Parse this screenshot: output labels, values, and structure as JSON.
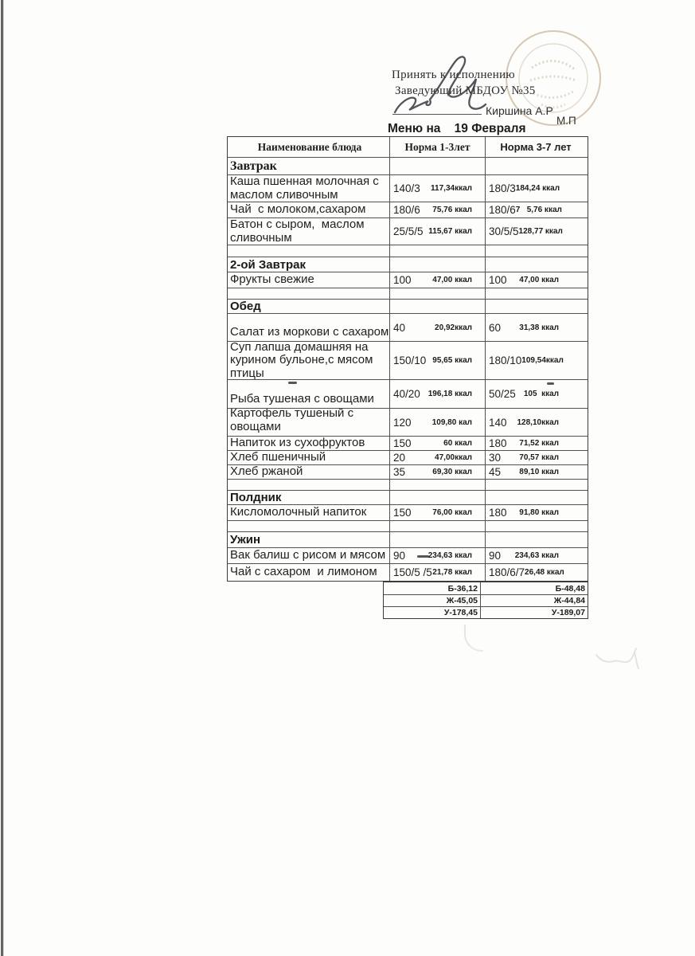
{
  "artifacts": {
    "stamp_color": "#b0946a",
    "edge_color": "#4b4b4b"
  },
  "header": {
    "approve_line": "Принять к исполнению",
    "position_line": "Заведующий МБДОУ №35",
    "signatory_name": "Киршина А.Р",
    "stamp_abbr": "М.П",
    "title": "Меню на    19 Февраля"
  },
  "menu_table": {
    "columns": [
      {
        "label": "Наименование блюда"
      },
      {
        "label": "Норма 1-3лет"
      },
      {
        "label": "Норма 3-7 лет"
      }
    ],
    "rows": [
      {
        "type": "section",
        "font": "serif",
        "name": "Завтрак",
        "h": 22
      },
      {
        "type": "dish",
        "name": "Каша пшенная молочная с маслом сливочным",
        "p1": "140/3",
        "k1": "117,34ккал",
        "p2": "180/3",
        "k2": "184,24 ккал",
        "h": 34
      },
      {
        "type": "dish",
        "name": "Чай  с молоком,сахаром",
        "p1": "180/6",
        "k1": "75,76 ккал",
        "p2": "180/6",
        "k2": "7   5,76 ккал",
        "h": 20
      },
      {
        "type": "dish",
        "name": "Батон с сыром,  маслом сливочным",
        "p1": "25/5/5",
        "k1": "115,67 ккал",
        "p2": "30/5/5",
        "k2": "128,77 ккал",
        "h": 34
      },
      {
        "type": "empty",
        "h": 15
      },
      {
        "type": "section",
        "font": "sans",
        "name": "2-ой Завтрак",
        "h": 19
      },
      {
        "type": "dish",
        "name": "Фрукты свежие",
        "p1": "100",
        "k1": "47,00 ккал",
        "p2": "100",
        "k2": "47,00 ккал",
        "h": 20
      },
      {
        "type": "empty",
        "h": 14
      },
      {
        "type": "section",
        "font": "sans",
        "name": "Обед",
        "h": 18
      },
      {
        "type": "dish",
        "name": "Салат из моркови с сахаром",
        "p1": "40",
        "k1": "20,92ккал",
        "p2": "60",
        "k2": "31,38 ккал",
        "h": 35,
        "valign": "bottom"
      },
      {
        "type": "dish",
        "name": "Суп лапша домашняя на курином бульоне,с мясом птицы",
        "p1": "150/10",
        "k1": "95,65 ккал",
        "p2": "180/10",
        "k2": "109,54ккал",
        "h": 48
      },
      {
        "type": "dish",
        "name": "Рыба тушеная с овощами",
        "p1": "40/20",
        "k1": "196,18 ккал",
        "p2": "50/25",
        "k2": "105  ккал",
        "h": 36,
        "valign": "bottom",
        "pen_marks": [
          "name-top",
          "col3-top"
        ]
      },
      {
        "type": "dish",
        "name": "Картофель тушеный с овощами",
        "p1": "120",
        "k1": "109,80 кал",
        "p2": "140",
        "k2": "128,10ккал",
        "h": 35,
        "valign": "bottom"
      },
      {
        "type": "dish",
        "name": "Напиток из сухофруктов",
        "p1": "150",
        "k1": "60 ккал",
        "p2": "180",
        "k2": "71,52 ккал",
        "h": 18
      },
      {
        "type": "dish",
        "name": "Хлеб пшеничный",
        "p1": "20",
        "k1": "47,00ккал",
        "p2": "30",
        "k2": "70,57 ккал",
        "h": 18
      },
      {
        "type": "dish",
        "name": "Хлеб ржаной",
        "p1": "35",
        "k1": "69,30 ккал",
        "p2": "45",
        "k2": "89,10 ккал",
        "h": 18
      },
      {
        "type": "empty",
        "h": 14
      },
      {
        "type": "section",
        "font": "sans",
        "name": "Полдник",
        "h": 18
      },
      {
        "type": "dish",
        "name": "Кисломолочный напиток",
        "p1": "150",
        "k1": "76,00 ккал",
        "p2": "180",
        "k2": "91,80 ккал",
        "h": 20
      },
      {
        "type": "empty",
        "h": 14
      },
      {
        "type": "section",
        "font": "sans",
        "name": "Ужин",
        "h": 20
      },
      {
        "type": "dish",
        "name": "Вак балиш с рисом и мясом",
        "p1": "90",
        "k1": "234,63 ккал",
        "p2": "90",
        "k2": "234,63 ккал",
        "h": 20,
        "pen_marks": [
          "after-p1"
        ]
      },
      {
        "type": "dish",
        "name": "Чай с сахаром  и лимоном",
        "p1": "150/5 /5",
        "k1": "21,78 ккал",
        "p2": "180/6/7",
        "k2": "26,48 ккал",
        "h": 22
      }
    ]
  },
  "totals_table": {
    "rows": [
      {
        "left": "Б-36,12",
        "right": "Б-48,48"
      },
      {
        "left": "Ж-45,05",
        "right": "Ж-44,84"
      },
      {
        "left": "У-178,45",
        "right": "У-189,07"
      }
    ]
  }
}
